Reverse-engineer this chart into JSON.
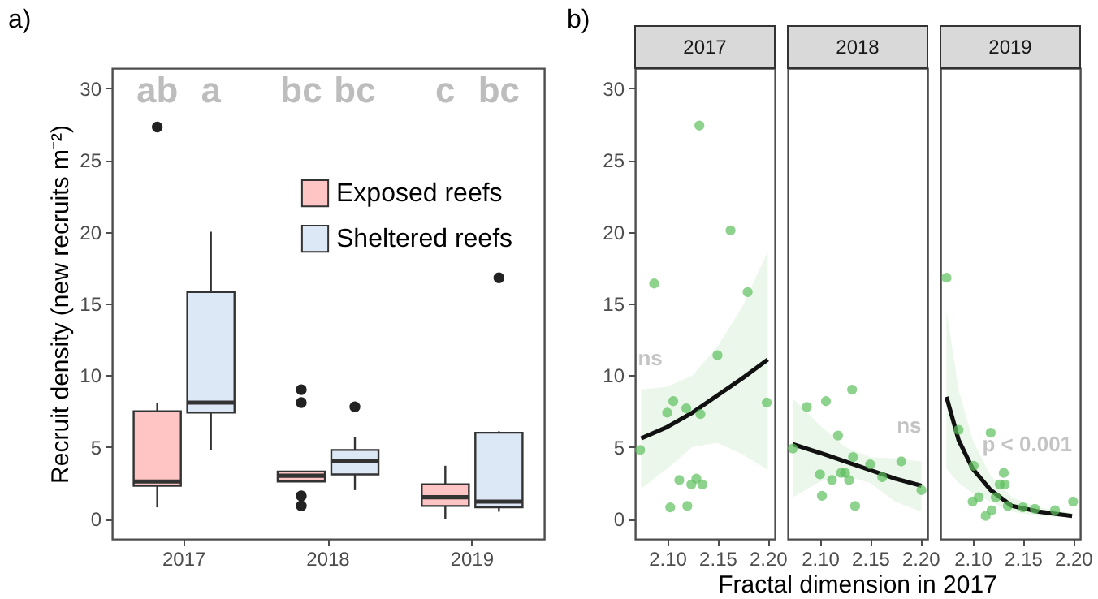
{
  "chart_data": [
    {
      "type": "box",
      "title": "a)",
      "ylabel": "Recruit density (new recruits m⁻²)",
      "categories": [
        "2017",
        "2018",
        "2019"
      ],
      "ylim": [
        -1.4,
        31.4
      ],
      "yticks": [
        0,
        5,
        10,
        15,
        20,
        25,
        30
      ],
      "grid": false,
      "legend": "top right",
      "annotations": [
        "ab",
        "a",
        "bc",
        "bc",
        "c",
        "bc"
      ],
      "series": [
        {
          "name": "Exposed reefs",
          "color": "#ffc4c4",
          "boxes": [
            {
              "low": 0.8,
              "q1": 2.3,
              "median": 2.6,
              "q3": 7.5,
              "high": 8.1,
              "outliers": [
                27.3
              ]
            },
            {
              "low": 2.6,
              "q1": 2.6,
              "median": 3.0,
              "q3": 3.3,
              "high": 3.3,
              "outliers": [
                9.0,
                8.1,
                1.6,
                0.9
              ]
            },
            {
              "low": 0,
              "q1": 0.9,
              "median": 1.5,
              "q3": 2.4,
              "high": 3.7
            }
          ]
        },
        {
          "name": "Sheltered reefs",
          "color": "#dce8f5",
          "boxes": [
            {
              "low": 4.8,
              "q1": 7.4,
              "median": 8.1,
              "q3": 15.8,
              "high": 20.0
            },
            {
              "low": 2.0,
              "q1": 3.1,
              "median": 4.0,
              "q3": 4.8,
              "high": 5.7,
              "outliers": [
                7.8
              ]
            },
            {
              "low": 0.5,
              "q1": 0.8,
              "median": 1.2,
              "q3": 6.0,
              "high": 6.1,
              "outliers": [
                16.8
              ]
            }
          ]
        }
      ]
    },
    {
      "type": "scatter",
      "title": "b)",
      "subtitle": "2017",
      "xlim": [
        2.068,
        2.207
      ],
      "xticks": [
        {
          "value": 2.1,
          "label": "2.10"
        },
        {
          "value": 2.15,
          "label": "2.15"
        },
        {
          "value": 2.2,
          "label": "2.20"
        }
      ],
      "ylim": [
        -1.4,
        31.4
      ],
      "yticks": [
        0,
        5,
        10,
        15,
        20,
        25,
        30
      ],
      "grid": false,
      "annotations": [
        "ns"
      ],
      "series": [
        {
          "type": "scatter",
          "marker": "circle",
          "color": "#5cbf5c",
          "x": [
            2.073,
            2.087,
            2.1,
            2.106,
            2.103,
            2.112,
            2.12,
            2.119,
            2.124,
            2.129,
            2.133,
            2.135,
            2.132,
            2.15,
            2.163,
            2.18,
            2.199
          ],
          "values": [
            4.8,
            16.4,
            7.4,
            8.2,
            0.8,
            2.7,
            0.9,
            7.7,
            2.4,
            2.8,
            7.3,
            2.4,
            27.4,
            11.4,
            20.1,
            15.8,
            8.1
          ]
        },
        {
          "type": "line",
          "color": "#111111",
          "x": [
            2.074,
            2.1,
            2.125,
            2.15,
            2.175,
            2.2
          ],
          "values": [
            5.6,
            6.4,
            7.4,
            8.6,
            9.8,
            11.1
          ],
          "lower": [
            2.1,
            3.5,
            5.0,
            5.3,
            4.5,
            3.4
          ],
          "upper": [
            9.0,
            9.2,
            10.0,
            12.0,
            14.8,
            18.6
          ]
        }
      ]
    },
    {
      "type": "scatter",
      "subtitle": "2018",
      "xlabel": "Fractal dimension in 2017",
      "tick_labels": "x",
      "xlim": [
        2.068,
        2.207
      ],
      "xticks": [
        {
          "value": 2.1,
          "label": "2.10"
        },
        {
          "value": 2.15,
          "label": "2.15"
        },
        {
          "value": 2.2,
          "label": "2.20"
        }
      ],
      "ylim": [
        -1.4,
        31.4
      ],
      "yticks": [
        0,
        5,
        10,
        15,
        20,
        25,
        30
      ],
      "grid": false,
      "annotations": [
        "ns"
      ],
      "series": [
        {
          "type": "scatter",
          "marker": "circle",
          "color": "#5cbf5c",
          "x": [
            2.073,
            2.087,
            2.1,
            2.102,
            2.106,
            2.112,
            2.118,
            2.121,
            2.125,
            2.129,
            2.132,
            2.133,
            2.135,
            2.15,
            2.162,
            2.181,
            2.201
          ],
          "values": [
            4.9,
            7.8,
            3.1,
            1.6,
            8.2,
            2.7,
            5.8,
            3.2,
            3.2,
            2.7,
            9.0,
            4.3,
            0.9,
            3.8,
            2.9,
            4.0,
            2.0
          ]
        },
        {
          "type": "line",
          "color": "#111111",
          "x": [
            2.073,
            2.1,
            2.125,
            2.15,
            2.175,
            2.201
          ],
          "values": [
            5.2,
            4.6,
            4.0,
            3.4,
            2.8,
            2.3
          ],
          "lower": [
            1.5,
            2.6,
            3.0,
            2.5,
            1.2,
            0.5
          ],
          "upper": [
            8.4,
            6.5,
            5.0,
            4.3,
            4.2,
            4.0
          ]
        }
      ]
    },
    {
      "type": "scatter",
      "subtitle": "2019",
      "tick_labels": "x",
      "xlim": [
        2.068,
        2.207
      ],
      "xticks": [
        {
          "value": 2.1,
          "label": "2.10"
        },
        {
          "value": 2.15,
          "label": "2.15"
        },
        {
          "value": 2.2,
          "label": "2.20"
        }
      ],
      "ylim": [
        -1.4,
        31.4
      ],
      "yticks": [
        0,
        5,
        10,
        15,
        20,
        25,
        30
      ],
      "grid": false,
      "annotations": [
        "p < 0.001"
      ],
      "series": [
        {
          "type": "scatter",
          "marker": "circle",
          "color": "#5cbf5c",
          "x": [
            2.074,
            2.086,
            2.1,
            2.106,
            2.101,
            2.118,
            2.113,
            2.119,
            2.123,
            2.127,
            2.131,
            2.132,
            2.135,
            2.15,
            2.162,
            2.182,
            2.2
          ],
          "values": [
            16.8,
            6.2,
            1.2,
            1.5,
            3.7,
            6.0,
            0.2,
            0.6,
            1.5,
            2.4,
            3.2,
            2.4,
            0.9,
            0.8,
            0.7,
            0.6,
            1.2
          ]
        },
        {
          "type": "line",
          "color": "#111111",
          "x": [
            2.074,
            2.086,
            2.1,
            2.118,
            2.139,
            2.166,
            2.199
          ],
          "values": [
            8.5,
            5.5,
            3.5,
            2.0,
            0.9,
            0.5,
            0.2
          ],
          "lower": [
            3.5,
            2.5,
            1.8,
            1.2,
            0.5,
            0.2,
            0.1
          ],
          "upper": [
            14.5,
            9.0,
            5.5,
            3.0,
            1.5,
            0.8,
            0.4
          ]
        }
      ]
    }
  ]
}
